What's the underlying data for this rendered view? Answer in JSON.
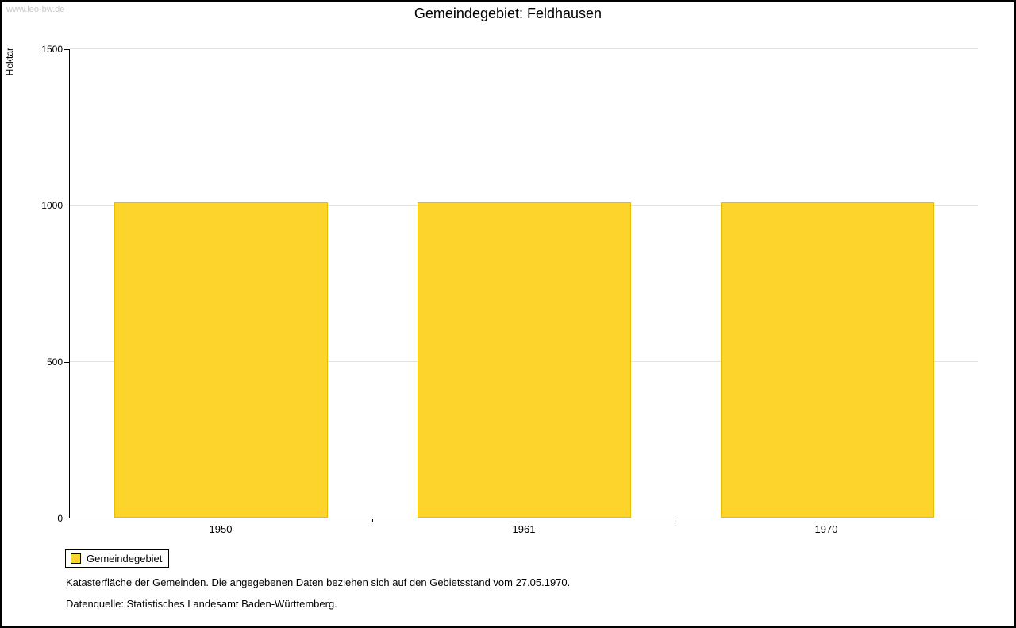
{
  "watermark": "www.leo-bw.de",
  "title": "Gemeindegebiet: Feldhausen",
  "chart_data": {
    "type": "bar",
    "title": "Gemeindegebiet: Feldhausen",
    "categories": [
      "1950",
      "1961",
      "1970"
    ],
    "values": [
      1008,
      1008,
      1008
    ],
    "series_name": "Gemeindegebiet",
    "xlabel": "",
    "ylabel": "Hektar",
    "ylim": [
      0,
      1500
    ],
    "yticks": [
      0,
      500,
      1000,
      1500
    ],
    "grid": true,
    "legend_position": "bottom-left",
    "bar_color": "#fcd42b"
  },
  "legend": {
    "label": "Gemeindegebiet"
  },
  "footnotes": [
    "Katasterfläche der Gemeinden. Die angegebenen Daten beziehen sich auf den Gebietsstand vom 27.05.1970.",
    "Datenquelle: Statistisches Landesamt Baden-Württemberg."
  ]
}
